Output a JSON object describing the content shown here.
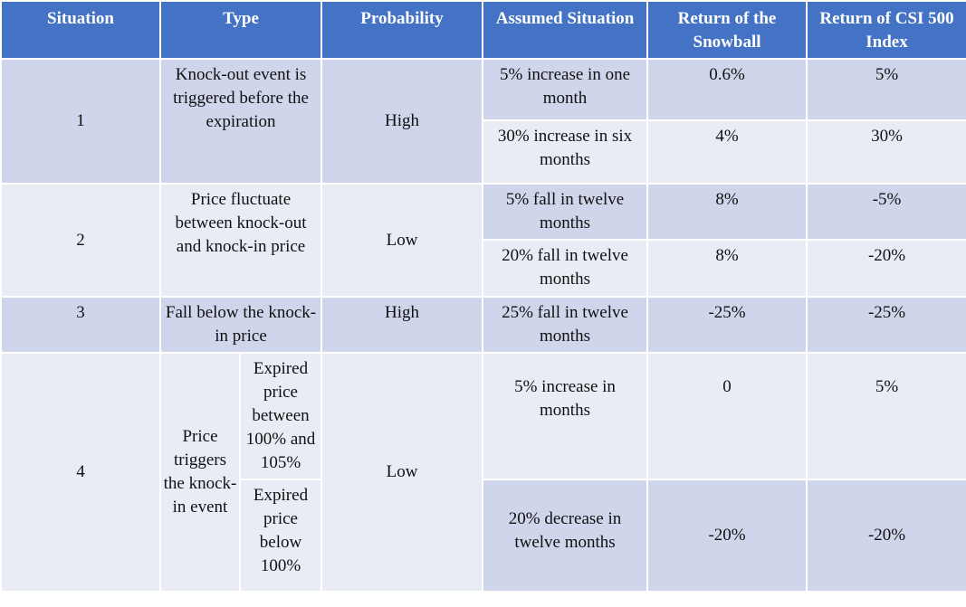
{
  "table": {
    "headers": {
      "situation": "Situation",
      "type": "Type",
      "probability": "Probability",
      "assumed": "Assumed Situation",
      "snowball": "Return of the Snowball",
      "csi": "Return of CSI 500 Index"
    },
    "rows": [
      {
        "situation": "1",
        "type": "Knock-out event is triggered before the expiration",
        "probability": "High",
        "cases": [
          {
            "assumed": "5% increase in one month",
            "snowball": "0.6%",
            "csi": "5%"
          },
          {
            "assumed": "30% increase in six months",
            "snowball": "4%",
            "csi": "30%"
          }
        ]
      },
      {
        "situation": "2",
        "type": "Price fluctuate between knock-out and knock-in price",
        "probability": "Low",
        "cases": [
          {
            "assumed": "5% fall in twelve months",
            "snowball": "8%",
            "csi": "-5%"
          },
          {
            "assumed": "20% fall in twelve months",
            "snowball": "8%",
            "csi": "-20%"
          }
        ]
      },
      {
        "situation": "3",
        "type": "Fall below the knock-in price",
        "probability": "High",
        "cases": [
          {
            "assumed": "25% fall in twelve months",
            "snowball": "-25%",
            "csi": "-25%"
          }
        ]
      },
      {
        "situation": "4",
        "type": "Price triggers the knock-in event",
        "subtypes": [
          "Expired price between 100% and 105%",
          "Expired price below 100%"
        ],
        "probability": "Low",
        "cases": [
          {
            "assumed": "5% increase in months",
            "snowball": "0",
            "csi": "5%"
          },
          {
            "assumed": "20% decrease in twelve months",
            "snowball": "-20%",
            "csi": "-20%"
          }
        ]
      }
    ]
  }
}
